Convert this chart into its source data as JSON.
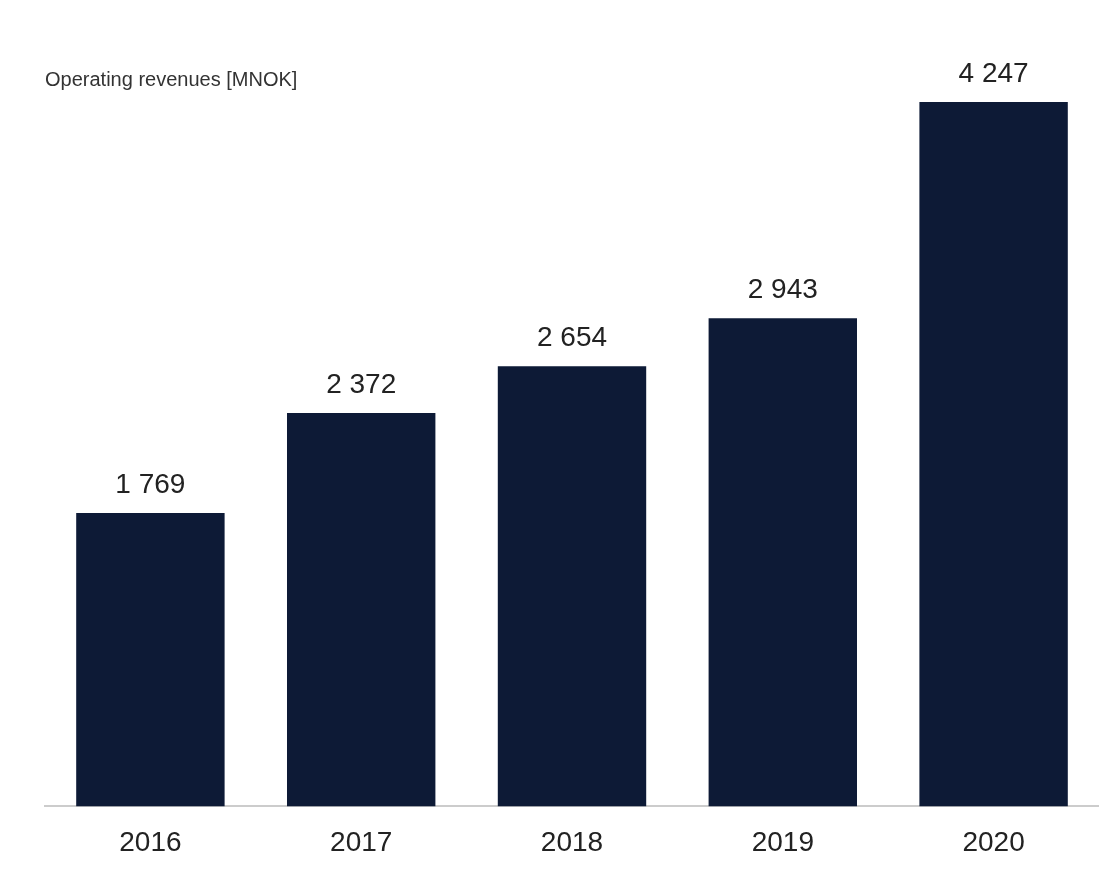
{
  "chart_data": {
    "type": "bar",
    "title": "Operating revenues [MNOK]",
    "categories": [
      "2016",
      "2017",
      "2018",
      "2019",
      "2020"
    ],
    "values": [
      1769,
      2372,
      2654,
      2943,
      4247
    ],
    "value_labels": [
      "1 769",
      "2 372",
      "2 654",
      "2 943",
      "4 247"
    ],
    "color": "#0d1a36",
    "grid": false,
    "legend": false,
    "tick_labels": "x"
  }
}
